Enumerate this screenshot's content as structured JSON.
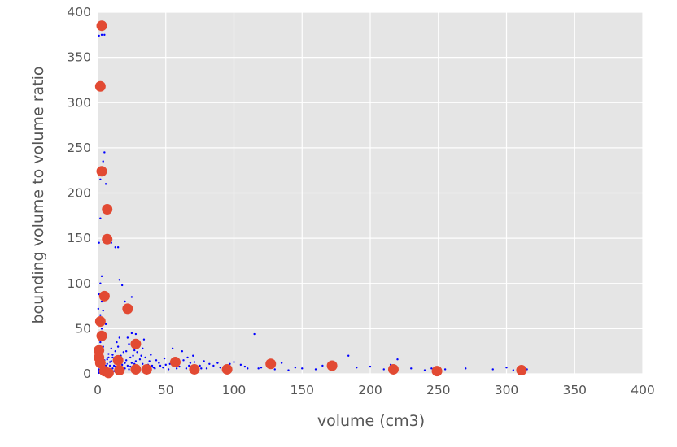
{
  "chart_data": {
    "type": "scatter",
    "title": "",
    "xlabel": "volume (cm3)",
    "ylabel": "bounding volume to volume ratio",
    "xlim": [
      0,
      400
    ],
    "ylim": [
      0,
      400
    ],
    "xticks": [
      "0",
      "50",
      "100",
      "150",
      "200",
      "250",
      "300",
      "350",
      "400"
    ],
    "yticks": [
      "0",
      "50",
      "100",
      "150",
      "200",
      "250",
      "300",
      "350",
      "400"
    ],
    "grid": true,
    "colors": {
      "background": "#e5e5e5",
      "grid": "#ffffff",
      "small_points": "#0000ff",
      "large_points": "#e24a33"
    },
    "series": [
      {
        "marker": "small-dot",
        "color": "#0000ff",
        "points": [
          [
            1,
            1
          ],
          [
            1,
            3
          ],
          [
            1,
            5
          ],
          [
            2,
            8
          ],
          [
            2,
            12
          ],
          [
            3,
            2
          ],
          [
            3,
            6
          ],
          [
            4,
            4
          ],
          [
            4,
            10
          ],
          [
            5,
            2
          ],
          [
            5,
            15
          ],
          [
            6,
            3
          ],
          [
            6,
            7
          ],
          [
            7,
            1
          ],
          [
            7,
            11
          ],
          [
            8,
            5
          ],
          [
            8,
            18
          ],
          [
            9,
            2
          ],
          [
            9,
            9
          ],
          [
            10,
            4
          ],
          [
            10,
            14
          ],
          [
            11,
            6
          ],
          [
            11,
            21
          ],
          [
            12,
            3
          ],
          [
            12,
            16
          ],
          [
            13,
            8
          ],
          [
            13,
            25
          ],
          [
            14,
            5
          ],
          [
            15,
            12
          ],
          [
            15,
            30
          ],
          [
            16,
            7
          ],
          [
            17,
            20
          ],
          [
            18,
            4
          ],
          [
            18,
            10
          ],
          [
            19,
            24
          ],
          [
            20,
            6
          ],
          [
            21,
            15
          ],
          [
            22,
            9
          ],
          [
            22,
            40
          ],
          [
            23,
            5
          ],
          [
            24,
            18
          ],
          [
            25,
            12
          ],
          [
            25,
            45
          ],
          [
            26,
            7
          ],
          [
            27,
            26
          ],
          [
            28,
            14
          ],
          [
            28,
            44
          ],
          [
            29,
            9
          ],
          [
            30,
            30
          ],
          [
            31,
            6
          ],
          [
            32,
            20
          ],
          [
            33,
            11
          ],
          [
            34,
            38
          ],
          [
            35,
            8
          ],
          [
            36,
            5
          ],
          [
            38,
            14
          ],
          [
            40,
            9
          ],
          [
            42,
            6
          ],
          [
            45,
            12
          ],
          [
            48,
            7
          ],
          [
            50,
            10
          ],
          [
            52,
            5
          ],
          [
            55,
            28
          ],
          [
            57,
            13
          ],
          [
            60,
            8
          ],
          [
            62,
            25
          ],
          [
            65,
            6
          ],
          [
            66,
            18
          ],
          [
            68,
            12
          ],
          [
            70,
            20
          ],
          [
            72,
            4
          ],
          [
            75,
            9
          ],
          [
            78,
            14
          ],
          [
            80,
            6
          ],
          [
            85,
            9
          ],
          [
            88,
            12
          ],
          [
            92,
            5
          ],
          [
            95,
            8
          ],
          [
            100,
            13
          ],
          [
            105,
            10
          ],
          [
            110,
            6
          ],
          [
            115,
            44
          ],
          [
            120,
            7
          ],
          [
            125,
            9
          ],
          [
            130,
            5
          ],
          [
            135,
            12
          ],
          [
            140,
            4
          ],
          [
            150,
            6
          ],
          [
            160,
            5
          ],
          [
            170,
            7
          ],
          [
            184,
            20
          ],
          [
            200,
            8
          ],
          [
            210,
            5
          ],
          [
            220,
            16
          ],
          [
            230,
            6
          ],
          [
            240,
            4
          ],
          [
            255,
            5
          ],
          [
            270,
            6
          ],
          [
            290,
            5
          ],
          [
            305,
            4
          ],
          [
            315,
            5
          ],
          [
            2,
            20
          ],
          [
            2,
            35
          ],
          [
            3,
            50
          ],
          [
            2,
            60
          ],
          [
            4,
            70
          ],
          [
            3,
            80
          ],
          [
            2,
            100
          ],
          [
            3,
            108
          ],
          [
            4,
            90
          ],
          [
            1,
            145
          ],
          [
            2,
            172
          ],
          [
            2,
            215
          ],
          [
            3,
            225
          ],
          [
            4,
            235
          ],
          [
            5,
            245
          ],
          [
            6,
            210
          ],
          [
            7,
            180
          ],
          [
            8,
            150
          ],
          [
            10,
            145
          ],
          [
            13,
            140
          ],
          [
            15,
            140
          ],
          [
            16,
            104
          ],
          [
            18,
            98
          ],
          [
            20,
            80
          ],
          [
            25,
            85
          ],
          [
            1,
            374
          ],
          [
            3,
            375
          ],
          [
            5,
            375
          ],
          [
            2,
            318
          ],
          [
            3,
            320
          ],
          [
            0.5,
            25
          ],
          [
            1,
            40
          ],
          [
            1,
            55
          ],
          [
            2,
            65
          ],
          [
            0.5,
            72
          ],
          [
            1,
            88
          ],
          [
            4,
            30
          ],
          [
            5,
            45
          ],
          [
            6,
            55
          ],
          [
            3,
            12
          ],
          [
            4,
            14
          ],
          [
            6,
            9
          ],
          [
            7,
            16
          ],
          [
            8,
            22
          ],
          [
            9,
            13
          ],
          [
            10,
            28
          ],
          [
            11,
            18
          ],
          [
            12,
            9
          ],
          [
            14,
            35
          ],
          [
            16,
            40
          ],
          [
            18,
            16
          ],
          [
            20,
            12
          ],
          [
            21,
            25
          ],
          [
            23,
            33
          ],
          [
            24,
            8
          ],
          [
            26,
            20
          ],
          [
            27,
            11
          ],
          [
            29,
            24
          ],
          [
            31,
            16
          ],
          [
            33,
            28
          ],
          [
            35,
            18
          ],
          [
            37,
            10
          ],
          [
            39,
            21
          ],
          [
            41,
            7
          ],
          [
            43,
            15
          ],
          [
            46,
            9
          ],
          [
            49,
            17
          ],
          [
            53,
            11
          ],
          [
            58,
            6
          ],
          [
            63,
            15
          ],
          [
            67,
            9
          ],
          [
            71,
            13
          ],
          [
            76,
            6
          ],
          [
            82,
            11
          ],
          [
            90,
            7
          ],
          [
            97,
            11
          ],
          [
            108,
            8
          ],
          [
            118,
            6
          ],
          [
            128,
            10
          ],
          [
            145,
            7
          ],
          [
            165,
            9
          ],
          [
            190,
            7
          ],
          [
            215,
            10
          ],
          [
            245,
            6
          ],
          [
            300,
            7
          ],
          [
            312,
            6
          ]
        ]
      },
      {
        "marker": "large-dot",
        "color": "#e24a33",
        "points": [
          [
            3,
            385
          ],
          [
            2,
            318
          ],
          [
            3,
            224
          ],
          [
            7,
            182
          ],
          [
            7,
            149
          ],
          [
            5,
            86
          ],
          [
            22,
            72
          ],
          [
            2,
            58
          ],
          [
            3,
            42
          ],
          [
            28,
            33
          ],
          [
            1,
            26
          ],
          [
            1,
            18
          ],
          [
            2,
            12
          ],
          [
            5,
            3
          ],
          [
            8,
            1
          ],
          [
            15,
            15
          ],
          [
            16,
            4
          ],
          [
            28,
            5
          ],
          [
            36,
            5
          ],
          [
            57,
            13
          ],
          [
            71,
            5
          ],
          [
            95,
            5
          ],
          [
            127,
            11
          ],
          [
            172,
            9
          ],
          [
            217,
            5
          ],
          [
            249,
            3
          ],
          [
            311,
            4
          ]
        ]
      }
    ]
  }
}
